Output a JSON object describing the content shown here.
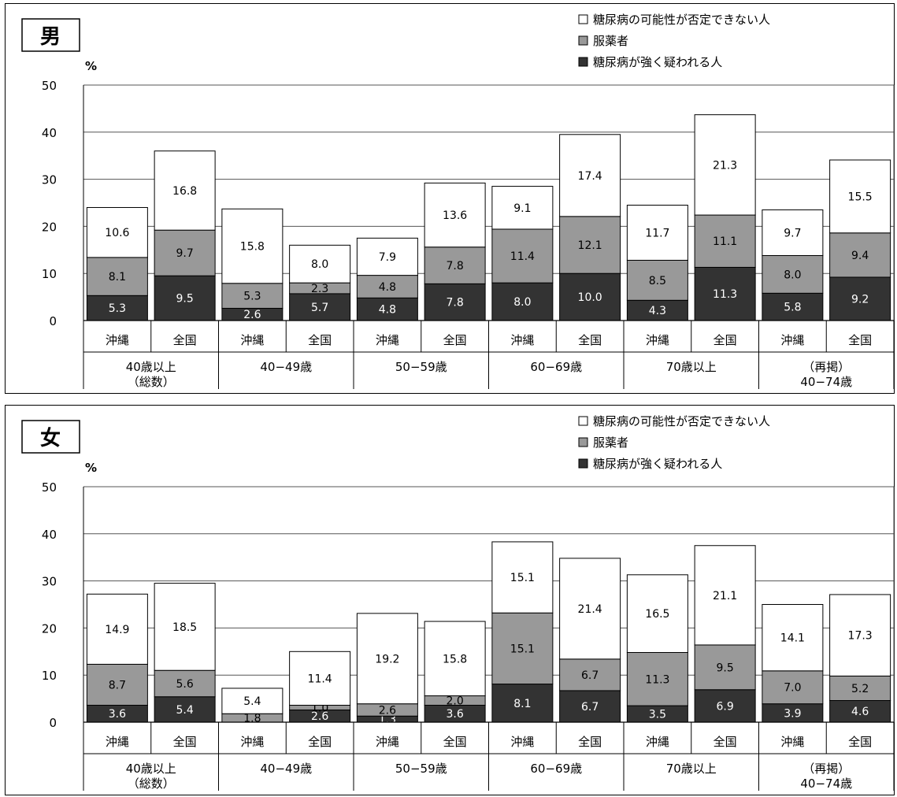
{
  "colors": {
    "not_ruled_out": "#ffffff",
    "medicated": "#999999",
    "strongly_suspected": "#333333"
  },
  "chart_data": [
    {
      "type": "bar",
      "stacked": true,
      "title": "男",
      "ylabel": "%",
      "ylim": [
        0,
        50
      ],
      "yticks": [
        0,
        10,
        20,
        30,
        40,
        50
      ],
      "grid": true,
      "legend_position": "top-right",
      "categories": [
        "沖縄",
        "全国",
        "沖縄",
        "全国",
        "沖縄",
        "全国",
        "沖縄",
        "全国",
        "沖縄",
        "全国",
        "沖縄",
        "全国"
      ],
      "groups": [
        {
          "label_lines": [
            "40歳以上",
            "（総数）"
          ]
        },
        {
          "label_lines": [
            "40−49歳"
          ]
        },
        {
          "label_lines": [
            "50−59歳"
          ]
        },
        {
          "label_lines": [
            "60−69歳"
          ]
        },
        {
          "label_lines": [
            "70歳以上"
          ]
        },
        {
          "label_lines": [
            "（再掲）",
            "40−74歳"
          ]
        }
      ],
      "series": [
        {
          "name": "糖尿病が強く疑われる人",
          "color_key": "strongly_suspected",
          "values": [
            5.3,
            9.5,
            2.6,
            5.7,
            4.8,
            7.8,
            8.0,
            10.0,
            4.3,
            11.3,
            5.8,
            9.2
          ],
          "labels": [
            "5.3",
            "9.5",
            "2.6",
            "5.7",
            "4.8",
            "7.8",
            "8.0",
            "10.0",
            "4.3",
            "11.3",
            "5.8",
            "9.2"
          ]
        },
        {
          "name": "服薬者",
          "color_key": "medicated",
          "values": [
            8.1,
            9.7,
            5.3,
            2.3,
            4.8,
            7.8,
            11.4,
            12.1,
            8.5,
            11.1,
            8.0,
            9.4
          ],
          "labels": [
            "8.1",
            "9.7",
            "5.3",
            "2.3",
            "4.8",
            "7.8",
            "11.4",
            "12.1",
            "8.5",
            "11.1",
            "8.0",
            "9.4"
          ]
        },
        {
          "name": "糖尿病の可能性が否定できない人",
          "color_key": "not_ruled_out",
          "values": [
            10.6,
            16.8,
            15.8,
            8.0,
            7.9,
            13.6,
            9.1,
            17.4,
            11.7,
            21.3,
            9.7,
            15.5
          ],
          "labels": [
            "10.6",
            "16.8",
            "15.8",
            "8.0",
            "7.9",
            "13.6",
            "9.1",
            "17.4",
            "11.7",
            "21.3",
            "9.7",
            "15.5"
          ]
        }
      ]
    },
    {
      "type": "bar",
      "stacked": true,
      "title": "女",
      "ylabel": "%",
      "ylim": [
        0,
        50
      ],
      "yticks": [
        0,
        10,
        20,
        30,
        40,
        50
      ],
      "grid": true,
      "legend_position": "top-right",
      "categories": [
        "沖縄",
        "全国",
        "沖縄",
        "全国",
        "沖縄",
        "全国",
        "沖縄",
        "全国",
        "沖縄",
        "全国",
        "沖縄",
        "全国"
      ],
      "groups": [
        {
          "label_lines": [
            "40歳以上",
            "（総数）"
          ]
        },
        {
          "label_lines": [
            "40−49歳"
          ]
        },
        {
          "label_lines": [
            "50−59歳"
          ]
        },
        {
          "label_lines": [
            "60−69歳"
          ]
        },
        {
          "label_lines": [
            "70歳以上"
          ]
        },
        {
          "label_lines": [
            "（再掲）",
            "40−74歳"
          ]
        }
      ],
      "series": [
        {
          "name": "糖尿病が強く疑われる人",
          "color_key": "strongly_suspected",
          "values": [
            3.6,
            5.4,
            0,
            2.6,
            1.3,
            3.6,
            8.1,
            6.7,
            3.5,
            6.9,
            3.9,
            4.6
          ],
          "labels": [
            "3.6",
            "5.4",
            "",
            "2.6",
            "1.3",
            "3.6",
            "8.1",
            "6.7",
            "3.5",
            "6.9",
            "3.9",
            "4.6"
          ]
        },
        {
          "name": "服薬者",
          "color_key": "medicated",
          "values": [
            8.7,
            5.6,
            1.8,
            1.0,
            2.6,
            2.0,
            15.1,
            6.7,
            11.3,
            9.5,
            7.0,
            5.2
          ],
          "labels": [
            "8.7",
            "5.6",
            "1.8",
            "1.0",
            "2.6",
            "2.0",
            "15.1",
            "6.7",
            "11.3",
            "9.5",
            "7.0",
            "5.2"
          ]
        },
        {
          "name": "糖尿病の可能性が否定できない人",
          "color_key": "not_ruled_out",
          "values": [
            14.9,
            18.5,
            5.4,
            11.4,
            19.2,
            15.8,
            15.1,
            21.4,
            16.5,
            21.1,
            14.1,
            17.3
          ],
          "labels": [
            "14.9",
            "18.5",
            "5.4",
            "11.4",
            "19.2",
            "15.8",
            "15.1",
            "21.4",
            "16.5",
            "21.1",
            "14.1",
            "17.3"
          ]
        }
      ]
    }
  ]
}
